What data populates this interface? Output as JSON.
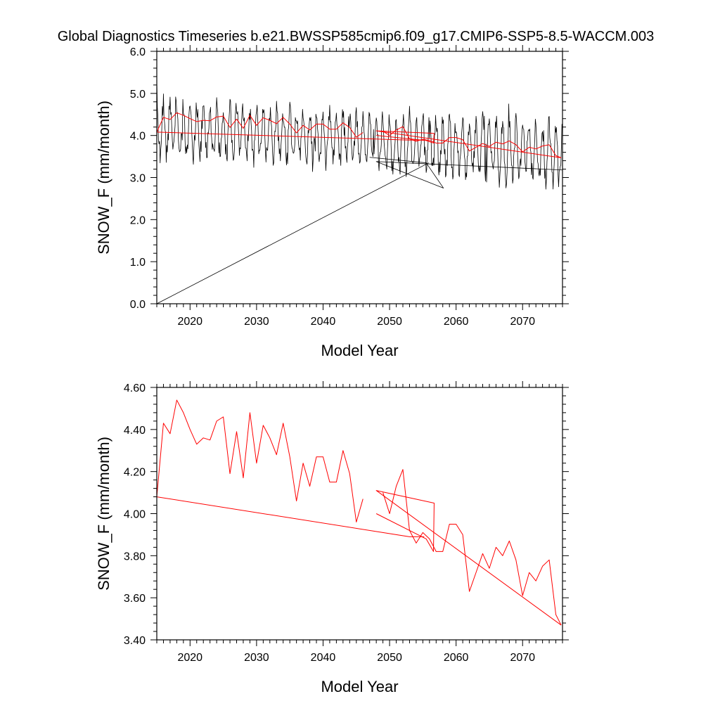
{
  "title": "Global Diagnostics Timeseries b.e21.BWSSP585cmip6.f09_g17.CMIP6-SSP5-8.5-WACCM.003",
  "colors": {
    "monthly": "#000000",
    "annual": "#ff0000",
    "axis": "#000000",
    "background": "#ffffff"
  },
  "chart_data": [
    {
      "type": "line",
      "xlabel": "Model Year",
      "ylabel": "SNOW_F (mm/month)",
      "xlim": [
        2015,
        2076
      ],
      "ylim": [
        0.0,
        6.0
      ],
      "xticks": [
        2020,
        2030,
        2040,
        2050,
        2060,
        2070
      ],
      "xtick_labels": [
        "2020",
        "2030",
        "2040",
        "2050",
        "2060",
        "2070"
      ],
      "yticks": [
        0.0,
        1.0,
        2.0,
        3.0,
        4.0,
        5.0,
        6.0
      ],
      "ytick_labels": [
        "0.0",
        "1.0",
        "2.0",
        "3.0",
        "4.0",
        "5.0",
        "6.0"
      ],
      "grid": false,
      "series": [
        {
          "kind": "monthly",
          "style": "black thin line, monthly values oscillating seasonally",
          "segments": [
            {
              "note": "spurious link from origin",
              "x": [
                2015.0,
                2055.9
              ],
              "y": [
                0.0,
                3.35
              ]
            },
            {
              "note": "monthly series",
              "start_year": 2015.0,
              "end_year": 2047.0,
              "seasonal_low": [
                3.55,
                3.45
              ],
              "seasonal_high": [
                4.75,
                4.45
              ],
              "range": [
                2.85,
                5.3
              ]
            },
            {
              "note": "wrap-around traces",
              "x": [
                2047.0,
                2055.5,
                2058.1,
                2048.0,
                2076.0
              ],
              "y": [
                3.48,
                3.35,
                2.75,
                3.38,
                3.18
              ]
            },
            {
              "note": "monthly series",
              "start_year": 2047.0,
              "end_year": 2076.0,
              "seasonal_low": [
                3.3,
                2.9
              ],
              "seasonal_high": [
                4.4,
                4.25
              ],
              "range": [
                2.55,
                4.75
              ]
            }
          ]
        },
        {
          "kind": "annual",
          "style": "red line, annual means",
          "segments": [
            {
              "x": [
                2015,
                2016,
                2017,
                2018,
                2019,
                2020,
                2021,
                2022,
                2023,
                2024,
                2025,
                2026,
                2027,
                2028,
                2029,
                2030,
                2031,
                2032,
                2033,
                2034,
                2035,
                2036,
                2037,
                2038,
                2039,
                2040,
                2041,
                2042,
                2043,
                2044,
                2045,
                2046
              ],
              "y": [
                4.08,
                4.43,
                4.38,
                4.54,
                4.48,
                4.4,
                4.33,
                4.36,
                4.35,
                4.44,
                4.46,
                4.19,
                4.39,
                4.17,
                4.48,
                4.24,
                4.42,
                4.36,
                4.28,
                4.43,
                4.27,
                4.06,
                4.24,
                4.13,
                4.27,
                4.27,
                4.15,
                4.15,
                4.3,
                4.19,
                3.96,
                4.07
              ]
            },
            {
              "x": [
                2015,
                2053,
                2055.2
              ],
              "y": [
                4.08,
                3.89,
                3.89
              ]
            },
            {
              "x": [
                2048,
                2055.5,
                2056.6,
                2056.7,
                2048.0,
                2075.8
              ],
              "y": [
                4.0,
                3.88,
                3.82,
                4.05,
                4.11,
                3.47
              ]
            },
            {
              "x": [
                2049,
                2050,
                2051,
                2052,
                2053,
                2054,
                2055,
                2056,
                2057,
                2058,
                2059,
                2060,
                2061,
                2062,
                2063,
                2064,
                2065,
                2066,
                2067,
                2068,
                2069,
                2070,
                2071,
                2072,
                2073,
                2074,
                2075,
                2075.8
              ],
              "y": [
                4.1,
                4.0,
                4.13,
                4.21,
                3.92,
                3.86,
                3.91,
                3.88,
                3.82,
                3.82,
                3.95,
                3.95,
                3.9,
                3.63,
                3.72,
                3.81,
                3.74,
                3.84,
                3.8,
                3.87,
                3.78,
                3.61,
                3.72,
                3.68,
                3.75,
                3.78,
                3.52,
                3.47
              ]
            }
          ]
        }
      ]
    },
    {
      "type": "line",
      "xlabel": "Model Year",
      "ylabel": "SNOW_F (mm/month)",
      "xlim": [
        2015,
        2076
      ],
      "ylim": [
        3.4,
        4.6
      ],
      "xticks": [
        2020,
        2030,
        2040,
        2050,
        2060,
        2070
      ],
      "xtick_labels": [
        "2020",
        "2030",
        "2040",
        "2050",
        "2060",
        "2070"
      ],
      "yticks": [
        3.4,
        3.6,
        3.8,
        4.0,
        4.2,
        4.4,
        4.6
      ],
      "ytick_labels": [
        "3.40",
        "3.60",
        "3.80",
        "4.00",
        "4.20",
        "4.40",
        "4.60"
      ],
      "grid": false,
      "series": [
        {
          "kind": "annual",
          "style": "red line, annual means",
          "segments": [
            {
              "x": [
                2015,
                2016,
                2017,
                2018,
                2019,
                2020,
                2021,
                2022,
                2023,
                2024,
                2025,
                2026,
                2027,
                2028,
                2029,
                2030,
                2031,
                2032,
                2033,
                2034,
                2035,
                2036,
                2037,
                2038,
                2039,
                2040,
                2041,
                2042,
                2043,
                2044,
                2045,
                2046
              ],
              "y": [
                4.08,
                4.43,
                4.38,
                4.54,
                4.48,
                4.4,
                4.33,
                4.36,
                4.35,
                4.44,
                4.46,
                4.19,
                4.39,
                4.17,
                4.48,
                4.24,
                4.42,
                4.36,
                4.28,
                4.43,
                4.27,
                4.06,
                4.24,
                4.13,
                4.27,
                4.27,
                4.15,
                4.15,
                4.3,
                4.19,
                3.96,
                4.07
              ]
            },
            {
              "x": [
                2015,
                2053,
                2055.2
              ],
              "y": [
                4.08,
                3.89,
                3.89
              ]
            },
            {
              "x": [
                2048,
                2055.5,
                2056.6,
                2056.7,
                2048.0,
                2075.8
              ],
              "y": [
                4.0,
                3.88,
                3.82,
                4.05,
                4.11,
                3.47
              ]
            },
            {
              "x": [
                2049,
                2050,
                2051,
                2052,
                2053,
                2054,
                2055,
                2056,
                2057,
                2058,
                2059,
                2060,
                2061,
                2062,
                2063,
                2064,
                2065,
                2066,
                2067,
                2068,
                2069,
                2070,
                2071,
                2072,
                2073,
                2074,
                2075,
                2075.8
              ],
              "y": [
                4.1,
                4.0,
                4.13,
                4.21,
                3.92,
                3.86,
                3.91,
                3.88,
                3.82,
                3.82,
                3.95,
                3.95,
                3.9,
                3.63,
                3.72,
                3.81,
                3.74,
                3.84,
                3.8,
                3.87,
                3.78,
                3.61,
                3.72,
                3.68,
                3.75,
                3.78,
                3.52,
                3.47
              ]
            }
          ]
        }
      ]
    }
  ]
}
